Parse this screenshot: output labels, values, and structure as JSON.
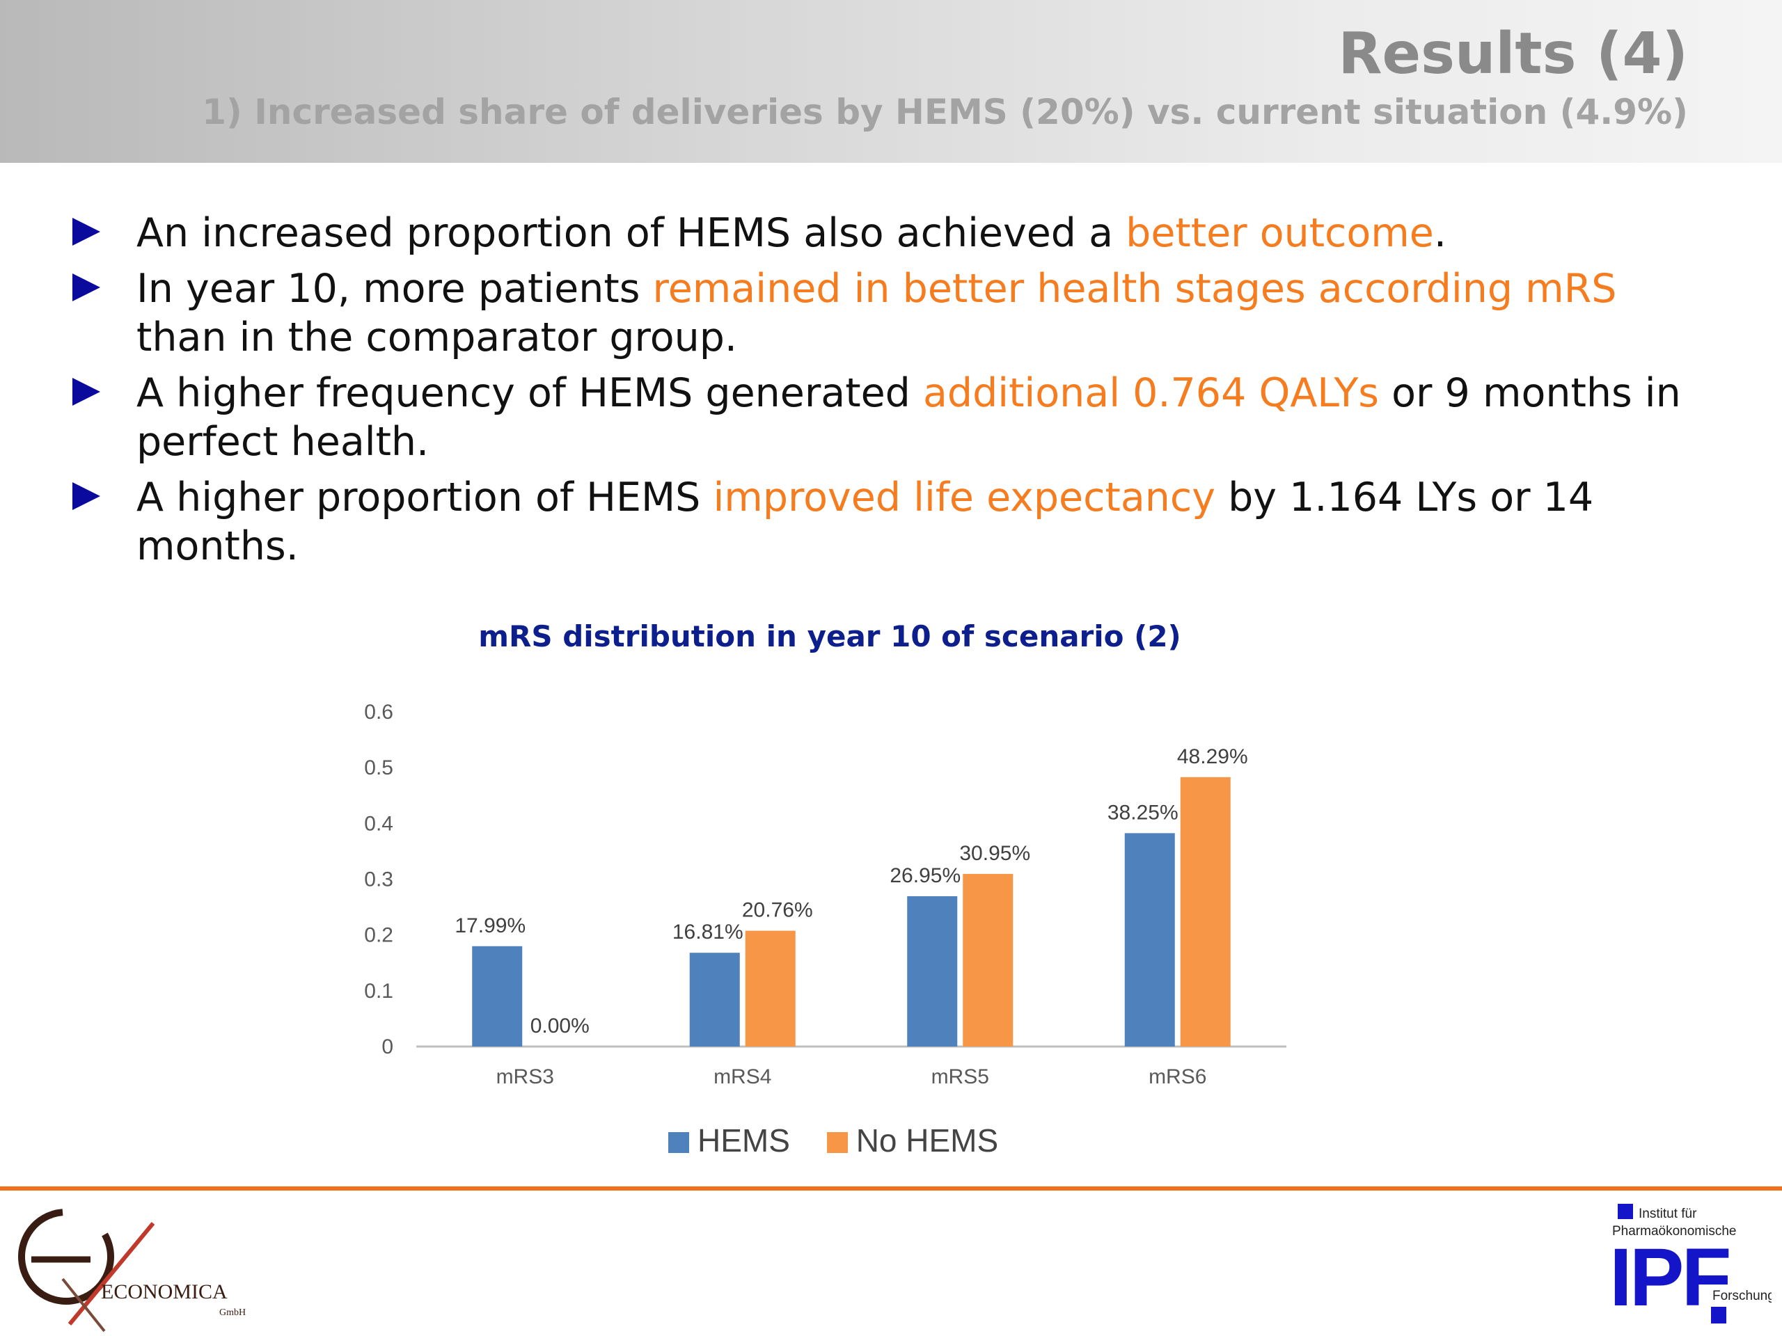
{
  "header": {
    "title": "Results (4)",
    "subtitle": "1) Increased share of deliveries by HEMS (20%) vs. current situation (4.9%)"
  },
  "bullets": [
    {
      "parts": [
        {
          "text": "An increased proportion of HEMS also achieved a "
        },
        {
          "text": "better outcome",
          "highlight": true
        },
        {
          "text": "."
        }
      ]
    },
    {
      "parts": [
        {
          "text": "In year 10, more patients "
        },
        {
          "text": "remained in better health stages according mRS",
          "highlight": true
        },
        {
          "text": " than in the comparator group."
        }
      ]
    },
    {
      "parts": [
        {
          "text": "A higher frequency of HEMS generated "
        },
        {
          "text": "additional 0.764 QALYs",
          "highlight": true
        },
        {
          "text": " or 9 months in perfect health."
        }
      ]
    },
    {
      "parts": [
        {
          "text": "A higher proportion of HEMS "
        },
        {
          "text": "improved life expectancy",
          "highlight": true
        },
        {
          "text": " by 1.164 LYs or 14 months."
        }
      ]
    }
  ],
  "colors": {
    "highlight": "#f57c1f",
    "bullet_marker": "#0a0a9c",
    "hems": "#4f81bd",
    "no_hems": "#f79646",
    "chart_title": "#0c1f8c",
    "footer_line": "#f26f1b"
  },
  "chart_data": {
    "type": "bar",
    "title": "mRS distribution in year 10 of scenario (2)",
    "categories": [
      "mRS3",
      "mRS4",
      "mRS5",
      "mRS6"
    ],
    "series": [
      {
        "name": "HEMS",
        "values": [
          0.1799,
          0.1681,
          0.2695,
          0.3825
        ],
        "labels": [
          "17.99%",
          "16.81%",
          "26.95%",
          "38.25%"
        ]
      },
      {
        "name": "No HEMS",
        "values": [
          0.0,
          0.2076,
          0.3095,
          0.4829
        ],
        "labels": [
          "0.00%",
          "20.76%",
          "30.95%",
          "48.29%"
        ]
      }
    ],
    "ylim": [
      0,
      0.6
    ],
    "yticks": [
      "0",
      "0.1",
      "0.2",
      "0.3",
      "0.4",
      "0.5",
      "0.6"
    ],
    "grid": false,
    "legend": "bottom"
  },
  "logos": {
    "left": {
      "text": "ECONOMICA",
      "sub": "GmbH"
    },
    "right": {
      "line1": "Institut für",
      "line2": "Pharmaökonomische",
      "mark": "IPF",
      "line3": "Forschung"
    }
  }
}
